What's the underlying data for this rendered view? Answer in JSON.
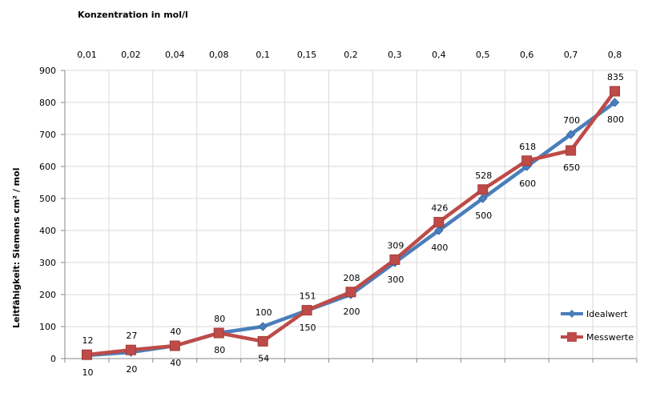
{
  "chart_data": {
    "type": "line",
    "xlabel": "Konzentration in mol/l",
    "ylabel": "Leitfähigkeit:  Siemens cm² / mol",
    "categories": [
      "0,01",
      "0,02",
      "0,04",
      "0,08",
      "0,1",
      "0,15",
      "0,2",
      "0,3",
      "0,4",
      "0,5",
      "0,6",
      "0,7",
      "0,8"
    ],
    "ylim": [
      0,
      900
    ],
    "yticks": [
      0,
      100,
      200,
      300,
      400,
      500,
      600,
      700,
      800,
      900
    ],
    "grid": true,
    "x_axis_position": "top",
    "legend_position": "right",
    "series": [
      {
        "name": "Idealwert",
        "marker": "diamond",
        "color": "#4a7ebb",
        "values": [
          10,
          20,
          40,
          80,
          100,
          150,
          200,
          300,
          400,
          500,
          600,
          700,
          800
        ],
        "labels": [
          "10",
          "20",
          "40",
          "80",
          "100",
          "150",
          "200",
          "300",
          "400",
          "500",
          "600",
          "700",
          "800"
        ],
        "label_side": [
          "below",
          "below",
          "below",
          "below",
          "above",
          "below",
          "below",
          "below",
          "below",
          "below",
          "below",
          "above",
          "below"
        ]
      },
      {
        "name": "Messwerte",
        "marker": "square",
        "color": "#be4b48",
        "values": [
          12,
          27,
          40,
          80,
          54,
          151,
          208,
          309,
          426,
          528,
          618,
          650,
          835
        ],
        "labels": [
          "12",
          "27",
          "40",
          "80",
          "54",
          "151",
          "208",
          "309",
          "426",
          "528",
          "618",
          "650",
          "835"
        ],
        "label_side": [
          "above",
          "above",
          "above",
          "above",
          "below",
          "above",
          "above",
          "above",
          "above",
          "above",
          "above",
          "below",
          "above"
        ]
      }
    ]
  }
}
